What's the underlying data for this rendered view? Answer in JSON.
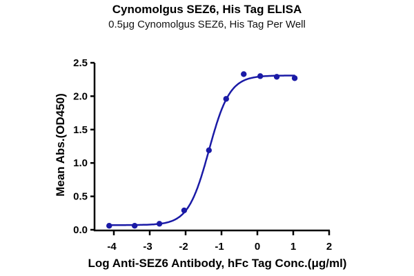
{
  "chart_data": {
    "type": "scatter",
    "title": "Cynomolgus SEZ6, His Tag ELISA",
    "subtitle": "0.5μg Cynomolgus SEZ6, His Tag Per Well",
    "xlabel": "Log Anti-SEZ6 Antibody, hFc Tag Conc.(μg/ml)",
    "ylabel": "Mean Abs.(OD450)",
    "xlim": [
      -4.5,
      2
    ],
    "ylim": [
      0,
      2.5
    ],
    "xticks": [
      "-4",
      "-3",
      "-2",
      "-1",
      "0",
      "1",
      "2"
    ],
    "yticks": [
      "0.0",
      "0.5",
      "1.0",
      "1.5",
      "2.0",
      "2.5"
    ],
    "grid": false,
    "series": [
      {
        "name": "Mean Abs.(OD450)",
        "color": "#1a1aa6",
        "x": [
          -4.13,
          -3.42,
          -2.73,
          -2.04,
          -1.35,
          -0.87,
          -0.38,
          0.08,
          0.54,
          1.04
        ],
        "y": [
          0.06,
          0.06,
          0.09,
          0.29,
          1.19,
          1.96,
          2.33,
          2.3,
          2.29,
          2.27
        ]
      }
    ],
    "fit": {
      "type": "4PL sigmoid",
      "bottom": 0.07,
      "top": 2.31,
      "logEC50": -1.35,
      "hill": 1.5,
      "color": "#1a1aa6"
    }
  }
}
